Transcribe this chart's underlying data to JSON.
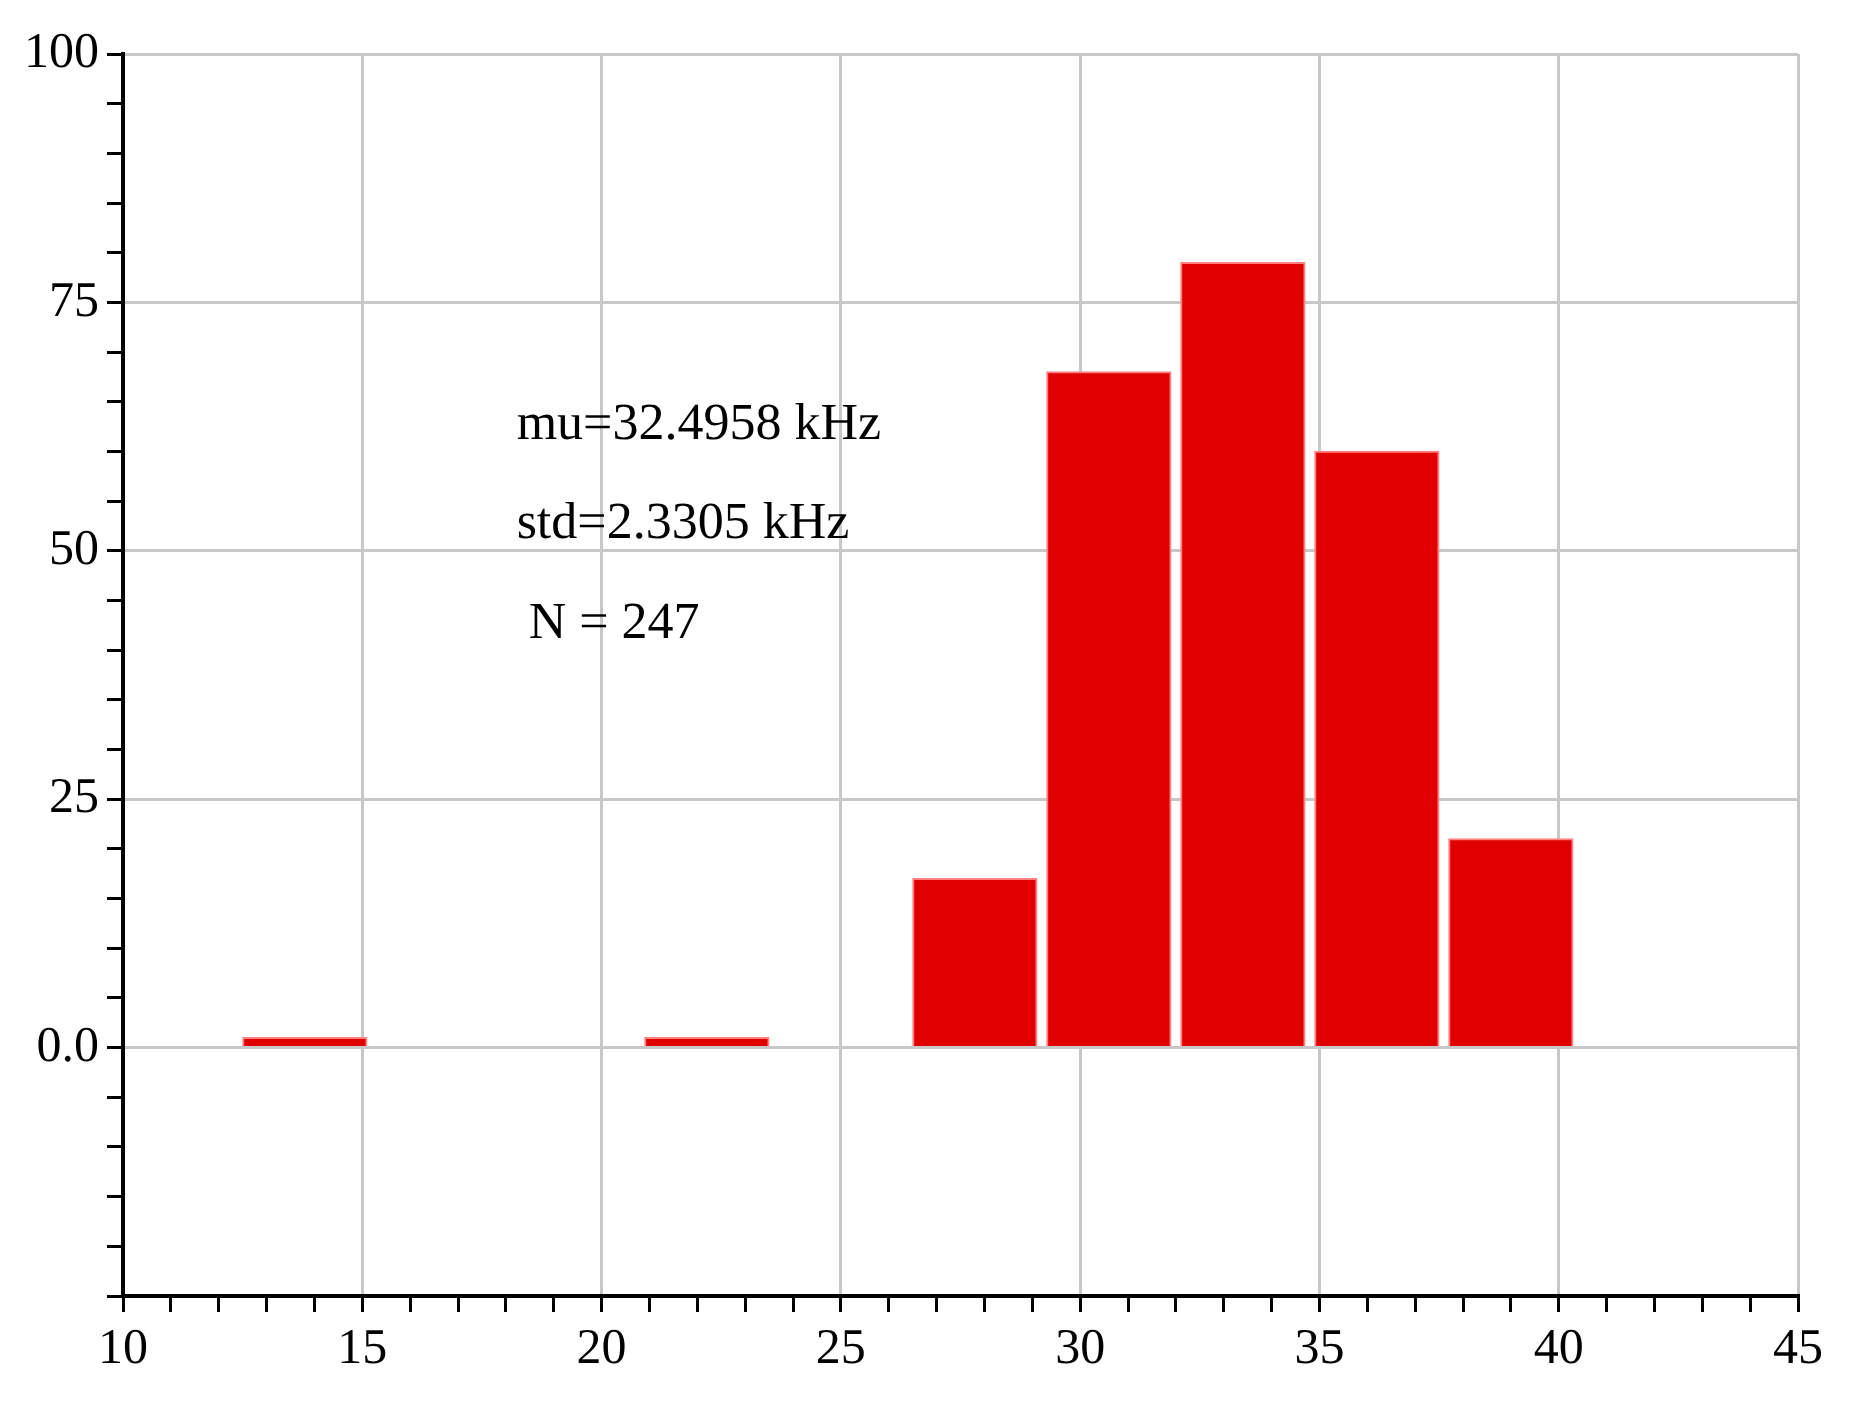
{
  "chart_data": {
    "type": "histogram",
    "bins": [
      12.4,
      15.2,
      18.0,
      20.8,
      23.6,
      26.4,
      29.2,
      32.0,
      34.8,
      37.6,
      40.4
    ],
    "values": [
      1,
      0,
      0,
      1,
      0,
      17,
      68,
      79,
      60,
      21
    ],
    "color": "#e00000",
    "annotations": [
      "mu=32.4958 kHz",
      "std=2.3305 kHz",
      "N = 247"
    ],
    "xlim": [
      10,
      45
    ],
    "xticks": [
      10,
      {
        "value": 11,
        "label": null
      },
      {
        "value": 12,
        "label": null
      },
      {
        "value": 13,
        "label": null
      },
      {
        "value": 14,
        "label": null
      },
      15,
      {
        "value": 16,
        "label": null
      },
      {
        "value": 17,
        "label": null
      },
      {
        "value": 18,
        "label": null
      },
      {
        "value": 19,
        "label": null
      },
      20,
      {
        "value": 21,
        "label": null
      },
      {
        "value": 22,
        "label": null
      },
      {
        "value": 23,
        "label": null
      },
      {
        "value": 24,
        "label": null
      },
      25,
      {
        "value": 26,
        "label": null
      },
      {
        "value": 27,
        "label": null
      },
      {
        "value": 28,
        "label": null
      },
      {
        "value": 29,
        "label": null
      },
      30,
      {
        "value": 31,
        "label": null
      },
      {
        "value": 32,
        "label": null
      },
      {
        "value": 33,
        "label": null
      },
      {
        "value": 34,
        "label": null
      },
      35,
      {
        "value": 36,
        "label": null
      },
      {
        "value": 37,
        "label": null
      },
      {
        "value": 38,
        "label": null
      },
      {
        "value": 39,
        "label": null
      },
      40,
      {
        "value": 41,
        "label": null
      },
      {
        "value": 42,
        "label": null
      },
      {
        "value": 43,
        "label": null
      },
      {
        "value": 44,
        "label": null
      },
      45
    ],
    "ylim": [
      -25,
      100
    ],
    "yticks": [
      {
        "value": -25,
        "label": null
      },
      {
        "value": -20,
        "label": null
      },
      {
        "value": -15,
        "label": null
      },
      {
        "value": -10,
        "label": null
      },
      {
        "value": -5,
        "label": null
      },
      {
        "value": 0,
        "label": "0.0"
      },
      {
        "value": 5,
        "label": null
      },
      {
        "value": 10,
        "label": null
      },
      {
        "value": 15,
        "label": null
      },
      {
        "value": 20,
        "label": null
      },
      25,
      {
        "value": 30,
        "label": null
      },
      {
        "value": 35,
        "label": null
      },
      {
        "value": 40,
        "label": null
      },
      {
        "value": 45,
        "label": null
      },
      50,
      {
        "value": 55,
        "label": null
      },
      {
        "value": 60,
        "label": null
      },
      {
        "value": 65,
        "label": null
      },
      {
        "value": 70,
        "label": null
      },
      75,
      {
        "value": 80,
        "label": null
      },
      {
        "value": 85,
        "label": null
      },
      {
        "value": 90,
        "label": null
      },
      {
        "value": 95,
        "label": null
      },
      100
    ],
    "grid": true,
    "legend": false
  }
}
